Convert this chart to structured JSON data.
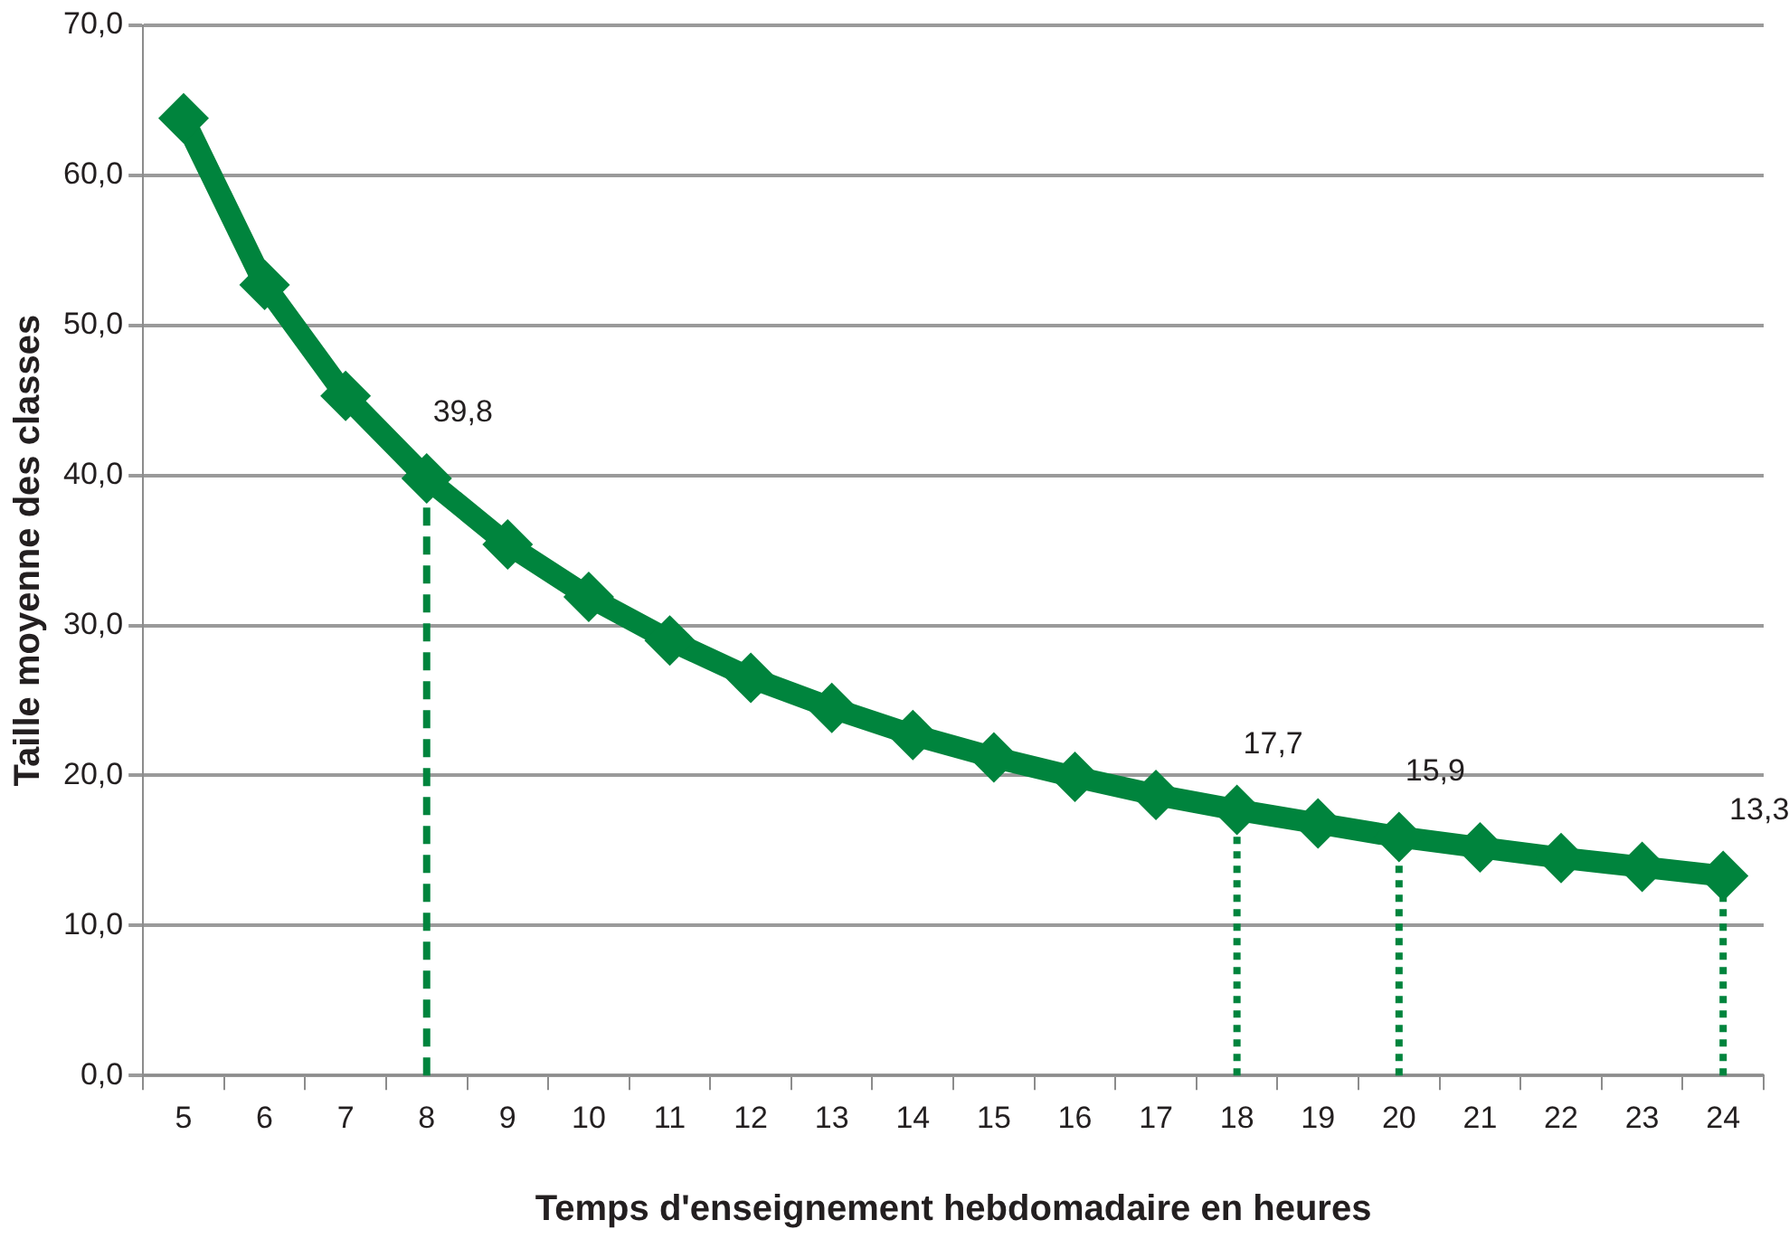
{
  "chart_data": {
    "type": "line",
    "xlabel": "Temps d'enseignement hebdomadaire en heures",
    "ylabel": "Taille moyenne des classes",
    "categories": [
      "5",
      "6",
      "7",
      "8",
      "9",
      "10",
      "11",
      "12",
      "13",
      "14",
      "15",
      "16",
      "17",
      "18",
      "19",
      "20",
      "21",
      "22",
      "23",
      "24"
    ],
    "series": [
      {
        "color": "#00843d",
        "values": [
          63.8,
          52.7,
          45.3,
          39.8,
          35.4,
          31.9,
          29.0,
          26.5,
          24.5,
          22.7,
          21.2,
          19.9,
          18.7,
          17.7,
          16.8,
          15.9,
          15.2,
          14.5,
          13.9,
          13.3
        ],
        "value_labels": [
          null,
          null,
          null,
          "39,8",
          null,
          null,
          null,
          null,
          null,
          null,
          null,
          null,
          null,
          "17,7",
          null,
          "15,9",
          null,
          null,
          null,
          "13,3"
        ]
      }
    ],
    "ylim": [
      0,
      70
    ],
    "yticks": [
      {
        "value": 0,
        "label": "0,0"
      },
      {
        "value": 10,
        "label": "10,0"
      },
      {
        "value": 20,
        "label": "20,0"
      },
      {
        "value": 30,
        "label": "30,0"
      },
      {
        "value": 40,
        "label": "40,0"
      },
      {
        "value": 50,
        "label": "50,0"
      },
      {
        "value": 60,
        "label": "60,0"
      },
      {
        "value": 70,
        "label": "70,0"
      }
    ],
    "grid": "y",
    "legend": false,
    "marker": "diamond",
    "line_style": "solid",
    "ref_lines": [
      {
        "axis": "x",
        "value": "8",
        "color": "#00843d",
        "line_style": "dashed"
      },
      {
        "axis": "x",
        "value": "18",
        "color": "#00843d",
        "line_style": "dotted"
      },
      {
        "axis": "x",
        "value": "20",
        "color": "#00843d",
        "line_style": "dotted"
      },
      {
        "axis": "x",
        "value": "24",
        "color": "#00843d",
        "line_style": "dotted"
      }
    ]
  }
}
